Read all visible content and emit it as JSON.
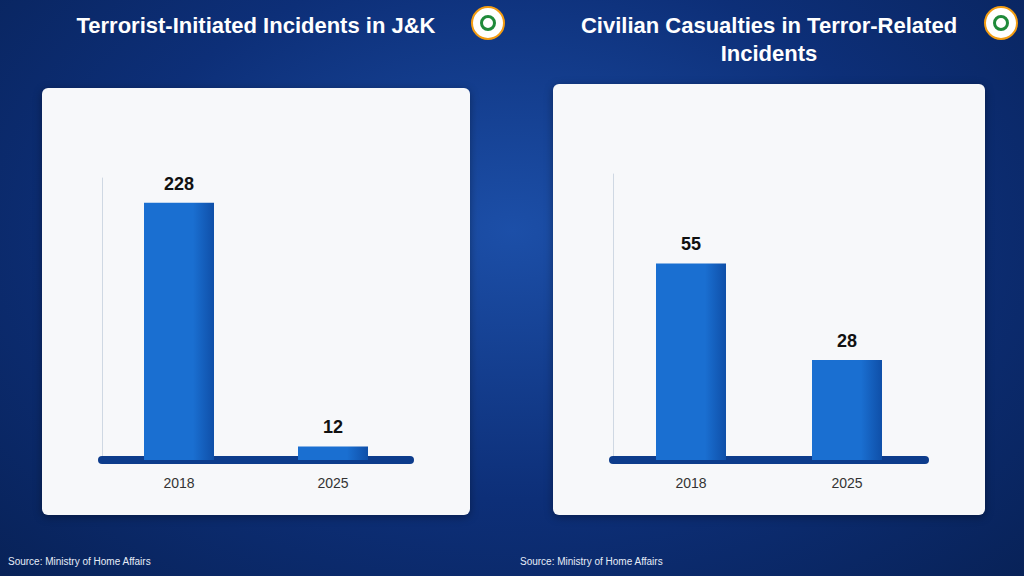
{
  "chart_data": [
    {
      "type": "bar",
      "title": "Terrorist-Initiated Incidents in J&K",
      "categories": [
        "2018",
        "2025"
      ],
      "values": [
        228,
        12
      ],
      "color": "#1a6fd1",
      "ylim": [
        0,
        250
      ],
      "data_labels": true,
      "tick_labels": "x",
      "grid": false,
      "source": "Source: Ministry of Home Affairs"
    },
    {
      "type": "bar",
      "title": "Civilian Casualties in Terror-Related Incidents",
      "categories": [
        "2018",
        "2025"
      ],
      "values": [
        55,
        28
      ],
      "color": "#1a6fd1",
      "ylim": [
        0,
        80
      ],
      "data_labels": true,
      "tick_labels": "x",
      "grid": false,
      "source": "Source: Ministry of Home Affairs"
    }
  ]
}
